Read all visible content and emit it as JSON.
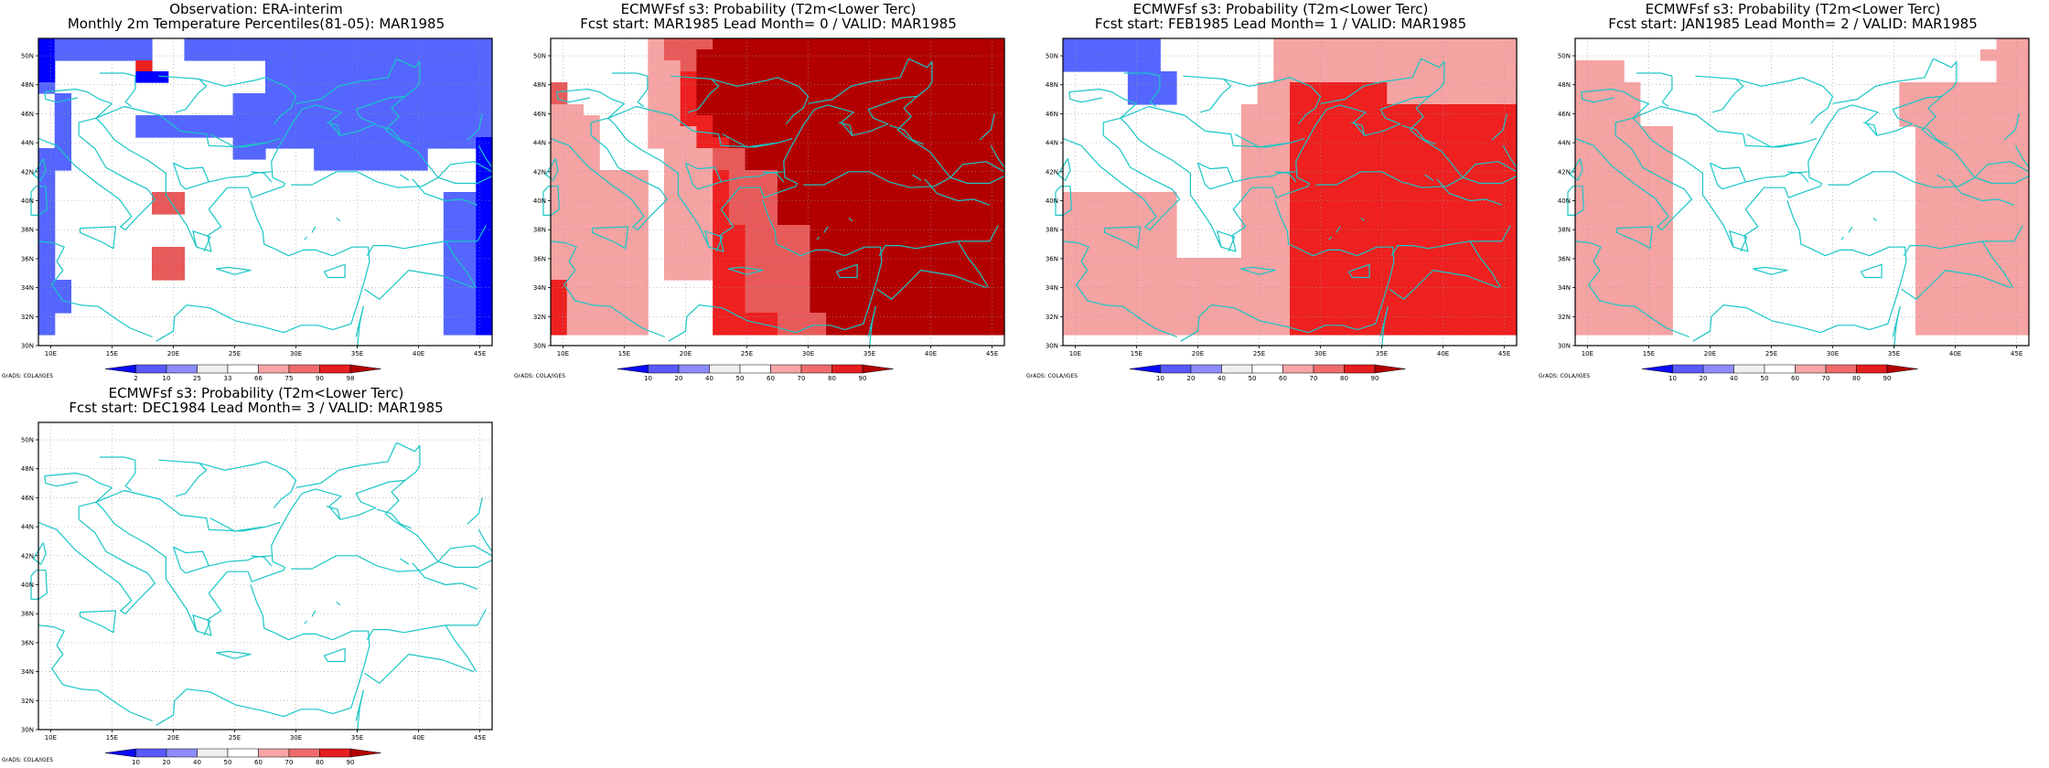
{
  "panels": [
    {
      "title_line1": "Observation: ERA-interim",
      "title_line2": "Monthly 2m Temperature Percentiles(81-05): MAR1985",
      "colorbar": {
        "labels": [
          "2",
          "10",
          "25",
          "33",
          "66",
          "75",
          "90",
          "98"
        ]
      },
      "grads": "GrADS: COLA/IGES",
      "grid": [
        "ABBBBBBGGBBBBBBBBBBBBBBBBBBB",
        "ABBBBBBGGBBBBBBBBBBBBBBBBBBB",
        "AGGGGGMGGGGGGGBBBBBBBBBBBBBB",
        "AGGGGGAAGGGGGGBBBBBBBBBBBBBB",
        "BGGGGGGGGGGGGGBBBBBBBBBBBBBB",
        "GBGGGGGGGGGGBBBBBBBBBBBBBBBB",
        "GBGGGGGGGGGGBBBBBBBBBBBBBBBB",
        "GBGGGGBBBBBBBBBBBBBBBBBBBBBB",
        "GBGGGGBBBBBBBBBBBBBBBBBBBBBB",
        "GBGGGGGGGGGGBBBBBBBBBBBBBBBA",
        "BBGGGGGGGGGGBBGGGBBBBBBBGGGA",
        "BBGGGGGGGGGGGGGGGBBBBBBBGGGA",
        "BGGGGGGGGGGGGGGGGGGGGGGGGGGA",
        "BGGGGGGGGGGGGGGGGGGGGGGGGGGA",
        "BGGGGGGQQGGGGGGGGGGGGGGGGBBA",
        "BGGGGGGQQGGGGGGGGGGGGGGGGBBA",
        "BGGGGGGGGGGGGGGGGGGGGGGGGBBA",
        "BGGGGGGGGGGGGGGGGGGGGGGGGBBA",
        "BGGGGGGGGGGGGGGGGGGGGGGGGBBA",
        "BGGGGGGQQGGGGGGGGGGGGGGGGBBA",
        "BGGGGGGQQGGGGGGGGGGGGGGGGBBA",
        "BGGGGGGQQGGGGGGGGGGGGGGGGBBA",
        "BBGGGGGGGGGGGGGGGGGGGGGGGBBA",
        "BBGGGGGGGGGGGGGGGGGGGGGGGBBA",
        "BBGGGGGGGGGGGGGGGGGGGGGGGBBA",
        "BGGGGGGGGGGGGGGGGGGGGGGGGBBA",
        "BGGGGGGGGGGGGGGGGGGGGGGGGBBA",
        "GGGGGGGGGGGGGGGGGGGGGGGGGGGG"
      ]
    },
    {
      "title_line1": "ECMWFsf s3: Probability (T2m<Lower Terc)",
      "title_line2": "Fcst start: MAR1985   Lead Month= 0 / VALID: MAR1985",
      "colorbar": {
        "labels": [
          "10",
          "20",
          "40",
          "50",
          "60",
          "70",
          "80",
          "90"
        ]
      },
      "grads": "GrADS: COLA/IGES",
      "grid": [
        "GGGGGGLQQQRRRRRRRRRRRRRRRRRR",
        "GGGGGGLQQRRRRRRRRRRRRRRRRRRR",
        "GGGGGGLLQRRRRRRRRRRRRRRRRRRR",
        "GGGGGGLLMRRRRRRRRRRRRRRRRRRR",
        "QGGGGGLLMRRRRRRRRRRRRRRRRRRR",
        "QGGGGGLLMRRRRRRRRRRRRRRRRRRR",
        "LLGGGGLLMRRRRRRRRRRRRRRRRRRR",
        "LLLGGGLLMMRRRRRRRRRRRRRRRRRR",
        "LLLGGGLLLMRRRRRRRRRRRRRRRRRR",
        "LLLGGGLLLMMRRRRRRRRRRRRRRRRR",
        "LLLGGGGLLLQQRRRRRRRRRRRRRRRR",
        "LLLGGGGLLLQQRRRRRRRRRRRRRRRR",
        "LLLLLLGLLLMQQQRRRRRRRRRRRRRR",
        "LLLLLLGLLLMQQQRRRRRRRRRRRRRR",
        "LLLLLLGLLLMQQQRRRRRRRRRRRRRR",
        "LLLLLLGLLLMQQQRRRRRRRRRRRRRR",
        "LLLLLLGLLLMQQQRRRRRRRRRRRRRR",
        "LLLLLLGLLLMMQQQQRRRRRRRRRRRR",
        "LLLLLLGLLLMMQQQQRRRRRRRRRRRR",
        "LLLLLLGLLLMMQQQQRRRRRRRRRRRR",
        "LLLLLLGLLLMMQQQQRRRRRRRRRRRR",
        "LLLLLLGLLLMMQQQQRRRRRRRRRRRR",
        "MLLLLLGGGGMMQQQQRRRRRRRRRRRR",
        "MLLLLLGGGGMMQQQQRRRRRRRRRRRR",
        "MLLLLLGGGGMMQQQQRRRRRRRRRRRR",
        "MLLLLLGGGGMMMMQQQRRRRRRRRRRR",
        "MLLLLLGGGGMMMMQQQRRRRRRRRRRR",
        "GGGGGGGGGGGGGGGGGGGGGGGGGGGG"
      ]
    },
    {
      "title_line1": "ECMWFsf s3: Probability (T2m<Lower Terc)",
      "title_line2": "Fcst start: FEB1985   Lead Month= 1 / VALID: MAR1985",
      "colorbar": {
        "labels": [
          "10",
          "20",
          "40",
          "50",
          "60",
          "70",
          "80",
          "90"
        ]
      },
      "grads": "GrADS: COLA/IGES",
      "grid": [
        "BBBBBBGGGGGGGLLLLLLLLLLLLLLL",
        "BBBBBBGGGGGGGLLLLLLLLLLLLLLL",
        "BBBBBBGGGGGGGLLLLLLLLLLLLLLL",
        "GGGGBBBGGGGGGLLLLLLLLLLLLLLL",
        "GGGGBBBGGGGGLLMMMMMMLLLLLLLL",
        "GGGGBBBGGGGGLLMMMMMMLLLLLLLL",
        "GGGGGGGGGGGLLLMMMMMMMMMMMMMM",
        "GGGGGGGGGGGLLLMMMMMMMMMMMMMM",
        "GGGGGGGGGGGLLLMMMMMMMMMMMMMM",
        "GGGGGGGGGGGLLLMMMMMMMMMMMMMM",
        "GGGGGGGGGGGLLLMMMMMMMMMMMMMM",
        "GGGGGGGGGGGLLLMMMMMMMMMMMMMM",
        "GGGGGGGGGGGLLLMMMMMMMMMMMMMM",
        "GGGGGGGGGGGLLLMMMMMMMMMMMMMM",
        "LLLLLLLGGGGLLLMMMMMMMMMMMMMM",
        "LLLLLLLGGGGLLLMMMMMMMMMMMMMM",
        "LLLLLLLGGGGLLLMMMMMMMMMMMMMM",
        "LLLLLLLGGGGLLLMMMMMMMMMMMMMM",
        "LLLLLLLGGGGLLLMMMMMMMMMMMMMM",
        "LLLLLLLGGGGLLLMMMMMMMMMMMMMM",
        "LLLLLLLLLLLLLLMMMMMMMMMMMMMM",
        "LLLLLLLLLLLLLLMMMMMMMMMMMMMM",
        "LLLLLLLLLLLLLLMMMMMMMMMMMMMM",
        "LLLLLLLLLLLLLLMMMMMMMMMMMMMM",
        "LLLLLLLLLLLLLLMMMMMMMMMMMMMM",
        "LLLLLLLLLLLLLLMMMMMMMMMMMMMM",
        "LLLLLLLLLLLLLLMMMMMMMMMMMMMM",
        "GGGGGGGGGGGGGGGGGGGGGGGGGGGG"
      ]
    },
    {
      "title_line1": "ECMWFsf s3: Probability (T2m<Lower Terc)",
      "title_line2": "Fcst start: JAN1985   Lead Month= 2 / VALID: MAR1985",
      "colorbar": {
        "labels": [
          "10",
          "20",
          "40",
          "50",
          "60",
          "70",
          "80",
          "90"
        ]
      },
      "grads": "GrADS: COLA/IGES",
      "grid": [
        "GGGGGGGGGGGGGGGGGGGGGGGGGGLL",
        "GGGGGGGGGGGGGGGGGGGGGGGGGLLL",
        "LLLGGGGGGGGGGGGGGGGGGGGGGGLL",
        "LLLGGGGGGGGGGGGGGGGGGGGGGGLL",
        "LLLLGGGGGGGGGGGGGGGGLLLLLLLL",
        "LLLLGGGGGGGGGGGGGGGGLLLLLLLL",
        "LLLLGGGGGGGGGGGGGGGGLLLLLLLL",
        "LLLLGGGGGGGGGGGGGGGGLLLLLLLL",
        "LLLLLLGGGGGGGGGGGGGGGLLLLLLL",
        "LLLLLLGGGGGGGGGGGGGGGLLLLLLL",
        "LLLLLLGGGGGGGGGGGGGGGLLLLLLL",
        "LLLLLLGGGGGGGGGGGGGGGLLLLLLL",
        "LLLLLLGGGGGGGGGGGGGGGLLLLLLL",
        "LLLLLLGGGGGGGGGGGGGGGLLLLLLL",
        "LLLLLLGGGGGGGGGGGGGGGLLLLLLL",
        "LLLLLLGGGGGGGGGGGGGGGLLLLLLL",
        "LLLLLLGGGGGGGGGGGGGGGLLLLLLL",
        "LLLLLLGGGGGGGGGGGGGGGLLLLLLL",
        "LLLLLLGGGGGGGGGGGGGGGLLLLLLL",
        "LLLLLLGGGGGGGGGGGGGGGLLLLLLL",
        "LLLLLLGGGGGGGGGGGGGGGLLLLLLL",
        "LLLLLLGGGGGGGGGGGGGGGLLLLLLL",
        "LLLLLLGGGGGGGGGGGGGGGLLLLLLL",
        "LLLLLLGGGGGGGGGGGGGGGLLLLLLL",
        "LLLLLLGGGGGGGGGGGGGGGLLLLLLL",
        "LLLLLLGGGGGGGGGGGGGGGLLLLLLL",
        "LLLLLLGGGGGGGGGGGGGGGLLLLLLL",
        "GGGGGGGGGGGGGGGGGGGGGGGGGGGG"
      ]
    },
    {
      "title_line1": "ECMWFsf s3: Probability (T2m<Lower Terc)",
      "title_line2": "Fcst start: DEC1984   Lead Month= 3 / VALID: MAR1985",
      "colorbar": {
        "labels": [
          "10",
          "20",
          "40",
          "50",
          "60",
          "70",
          "80",
          "90"
        ]
      },
      "grads": "GrADS: COLA/IGES",
      "grid": [
        "GGGGGGGGGGGGGGGGGGGGGGGGGGGG",
        "GGGGGGGGGGGGGGGGGGGGGGGGGGGG",
        "GGGGGGGGGGGGGGGGGGGGGGGGGGGG",
        "GGGGGGGGGGGGGGGGGGGGGGGGGGGG",
        "GGGGGGGGGGGGGGGGGGGGGGGGGGGG",
        "GGGGGGGGGGGGGGGGGGGGGGGGGGGG",
        "GGGGGGGGGGGGGGGGGGGGGGGGGGGG",
        "GGGGGGGGGGGGGGGGGGGGGGGGGGGG",
        "GGGGGGGGGGGGGGGGGGGGGGGGGGGG",
        "GGGGGGGGGGGGGGGGGGGGGGGGGGGG",
        "GGGGGGGGGGGGGGGGGGGGGGGGGGGG",
        "GGGGGGGGGGGGGGGGGGGGGGGGGGGG",
        "GGGGGGGGGGGGGGGGGGGGGGGGGGGG",
        "GGGGGGGGGGGGGGGGGGGGGGGGGGGG",
        "GGGGGGGGGGGGGGGGGGGGGGGGGGGG",
        "GGGGGGGGGGGGGGGGGGGGGGGGGGGG",
        "GGGGGGGGGGGGGGGGGGGGGGGGGGGG",
        "GGGGGGGGGGGGGGGGGGGGGGGGGGGG",
        "GGGGGGGGGGGGGGGGGGGGGGGGGGGG",
        "GGGGGGGGGGGGGGGGGGGGGGGGGGGG",
        "GGGGGGGGGGGGGGGGGGGGGGGGGGGG",
        "GGGGGGGGGGGGGGGGGGGGGGGGGGGG",
        "GGGGGGGGGGGGGGGGGGGGGGGGGGGG",
        "GGGGGGGGGGGGGGGGGGGGGGGGGGGG",
        "GGGGGGGGGGGGGGGGGGGGGGGGGGGG",
        "GGGGGGGGGGGGGGGGGGGGGGGGGGGG",
        "GGGGGGGGGGGGGGGGGGGGGGGGGGGG",
        "GGGGGGGGGGGGGGGGGGGGGGGGGGGG"
      ]
    }
  ],
  "lat_labels": [
    "50N",
    "48N",
    "46N",
    "44N",
    "42N",
    "40N",
    "38N",
    "36N",
    "34N",
    "32N",
    "30N"
  ],
  "lon_labels": [
    "10E",
    "15E",
    "20E",
    "25E",
    "30E",
    "35E",
    "40E",
    "45E"
  ],
  "colors": {
    "A": "#0000ff",
    "B": "#5566ff",
    "G": "#ffffff",
    "L": "#f5a3a3",
    "M": "#ee2020",
    "Q": "#e85a5a",
    "R": "#b20000",
    "coast": "#19c6c6",
    "colorbar": [
      "#0a0aff",
      "#5a5aff",
      "#8c8cff",
      "#f0f0f0",
      "#ffffff",
      "#f7a5a5",
      "#ef6c6c",
      "#e61e1e",
      "#b30000"
    ]
  }
}
